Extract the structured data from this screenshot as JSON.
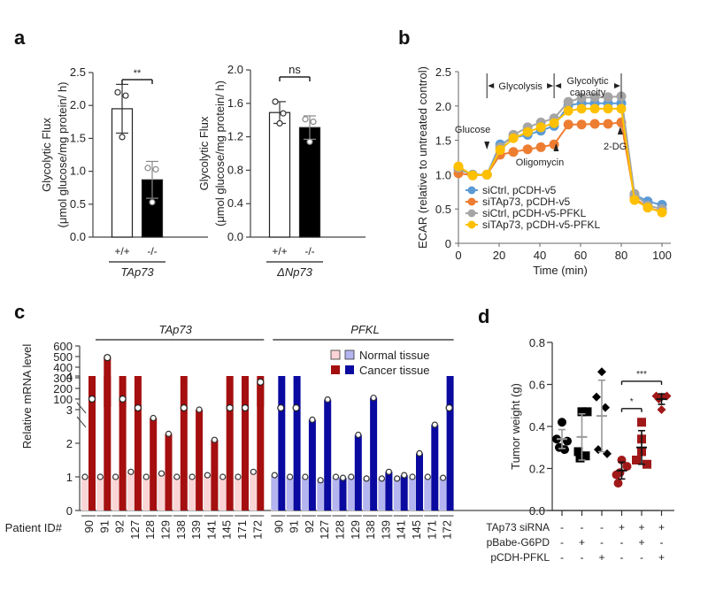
{
  "panels": {
    "a": "a",
    "b": "b",
    "c": "c",
    "d": "d"
  },
  "chart_data": [
    {
      "id": "a1",
      "type": "bar",
      "ylabel": [
        "Glycolytic Flux",
        "(μmol glucose/mg protein/ h)"
      ],
      "ylim": [
        0,
        2.5
      ],
      "yticks": [
        0.0,
        0.5,
        1.0,
        1.5,
        2.0,
        2.5
      ],
      "ytick_labels": [
        "0.0",
        "0.5",
        "1.0",
        "1.5",
        "2.0",
        "2.5"
      ],
      "categories": [
        "+/+",
        "-/-"
      ],
      "group_label": "TAp73",
      "values": [
        1.95,
        0.87
      ],
      "errors": [
        0.37,
        0.28
      ],
      "points": [
        [
          2.2,
          2.15,
          1.52
        ],
        [
          1.05,
          1.03,
          0.53
        ]
      ],
      "bar_colors": [
        "#ffffff",
        "#000000"
      ],
      "significance": "**"
    },
    {
      "id": "a2",
      "type": "bar",
      "ylabel": [
        "Glycolytic Flux",
        "(μmol glucose/mg protein/ h)"
      ],
      "ylim": [
        0,
        2.0
      ],
      "yticks": [
        0.0,
        0.4,
        0.8,
        1.2,
        1.6,
        2.0
      ],
      "ytick_labels": [
        "0.0",
        "0.4",
        "0.8",
        "1.2",
        "1.6",
        "2.0"
      ],
      "categories": [
        "+/+",
        "-/-"
      ],
      "group_label": "ΔNp73",
      "values": [
        1.49,
        1.31
      ],
      "errors": [
        0.13,
        0.14
      ],
      "points": [
        [
          1.62,
          1.48,
          1.36
        ],
        [
          1.41,
          1.38,
          1.14
        ]
      ],
      "bar_colors": [
        "#ffffff",
        "#000000"
      ],
      "significance": "ns"
    },
    {
      "id": "b",
      "type": "line",
      "xlabel": "Time (min)",
      "ylabel": "ECAR (relative to untreated control)",
      "xlim": [
        0,
        100
      ],
      "ylim": [
        0,
        2.5
      ],
      "xticks": [
        0,
        20,
        40,
        60,
        80,
        100
      ],
      "yticks": [
        0,
        0.5,
        1.0,
        1.5,
        2.0,
        2.5
      ],
      "ytick_labels": [
        "0",
        "0.5",
        "1.0",
        "1.5",
        "2.0",
        "2.5"
      ],
      "x": [
        0,
        7,
        14,
        20.5,
        27,
        34,
        40.5,
        47,
        54,
        60.5,
        67,
        73.5,
        80,
        86.5,
        93,
        100
      ],
      "series": [
        {
          "name": "siCtrl, pCDH-v5",
          "color": "#5b9bd5",
          "values": [
            1.08,
            1.0,
            1.0,
            1.44,
            1.54,
            1.58,
            1.64,
            1.71,
            2.01,
            2.04,
            2.04,
            2.04,
            2.04,
            0.71,
            0.61,
            0.56
          ]
        },
        {
          "name": "siTAp73, pCDH-v5",
          "color": "#ed7d31",
          "values": [
            1.02,
            0.99,
            1.0,
            1.29,
            1.33,
            1.37,
            1.4,
            1.44,
            1.73,
            1.73,
            1.74,
            1.74,
            1.76,
            0.66,
            0.52,
            0.46
          ]
        },
        {
          "name": "siCtrl, pCDH-v5-PFKL",
          "color": "#a5a5a5",
          "values": [
            1.1,
            0.99,
            1.0,
            1.4,
            1.58,
            1.69,
            1.76,
            1.82,
            2.06,
            2.12,
            2.13,
            2.13,
            2.14,
            0.72,
            0.55,
            0.5
          ]
        },
        {
          "name": "siTAp73, pCDH-v5-PFKL",
          "color": "#ffc000",
          "values": [
            1.12,
            0.99,
            1.0,
            1.36,
            1.53,
            1.62,
            1.69,
            1.75,
            1.93,
            1.96,
            1.96,
            1.96,
            1.96,
            0.63,
            0.52,
            0.45
          ]
        }
      ],
      "annotations": {
        "phase1": "Glycolysis",
        "phase2_line1": "Glycolytic",
        "phase2_line2": "capacity",
        "glucose": "Glucose",
        "oligomycin": "Oligomycin",
        "dg": "2-DG"
      }
    },
    {
      "id": "c",
      "type": "bar",
      "ylabel": "Relative mRNA level",
      "xlabel": "Patient ID#",
      "ylim_lower": [
        0,
        4
      ],
      "ylim_upper": [
        100,
        600
      ],
      "yticks_lower": [
        "0",
        "1",
        "2",
        "3",
        "4"
      ],
      "yticks_upper": [
        "100",
        "200",
        "300",
        "400",
        "500",
        "600"
      ],
      "categories": [
        "90",
        "91",
        "92",
        "127",
        "128",
        "129",
        "138",
        "139",
        "141",
        "145",
        "171",
        "172"
      ],
      "groups": [
        {
          "name": "TAp73",
          "normal_color": "#fbd5d5",
          "cancer_color": "#a50f0f",
          "normal": [
            1.0,
            1.0,
            1.0,
            1.15,
            1.0,
            1.1,
            1.0,
            1.0,
            1.05,
            1.0,
            1.0,
            1.15
          ],
          "cancer": [
            55,
            490,
            40,
            12,
            2.75,
            2.28,
            8,
            3.0,
            2.1,
            10,
            32,
            260
          ],
          "cancer_above_break": [
            true,
            true,
            true,
            false,
            false,
            false,
            false,
            false,
            false,
            false,
            false,
            true
          ],
          "cancer_dot_only_upper": [
            false,
            false,
            false,
            true,
            false,
            false,
            true,
            false,
            false,
            true,
            true,
            false
          ]
        },
        {
          "name": "PFKL",
          "normal_color": "#b4b4f0",
          "cancer_color": "#0a0aa0",
          "normal": [
            1.05,
            1.0,
            1.0,
            0.9,
            1.0,
            1.0,
            0.95,
            0.95,
            0.95,
            1.0,
            1.0,
            0.97
          ],
          "cancer": [
            8,
            8,
            2.7,
            3.3,
            0.97,
            2.25,
            3.35,
            1.15,
            1.05,
            1.7,
            2.55,
            8
          ],
          "cancer_above_break": [
            true,
            true,
            false,
            false,
            false,
            false,
            false,
            false,
            false,
            false,
            false,
            true
          ]
        }
      ],
      "legend": {
        "normal": "Normal tissue",
        "cancer": "Cancer tissue"
      }
    },
    {
      "id": "d",
      "type": "scatter",
      "ylabel": "Tumor weight (g)",
      "ylim": [
        0,
        0.8
      ],
      "yticks": [
        "0.0",
        "0.2",
        "0.4",
        "0.6",
        "0.8"
      ],
      "groups": [
        {
          "marker": "circle",
          "color": "#000000",
          "mean": 0.34,
          "sd": 0.045,
          "points": [
            0.42,
            0.34,
            0.33,
            0.3,
            0.29
          ]
        },
        {
          "marker": "square",
          "color": "#000000",
          "mean": 0.35,
          "sd": 0.11,
          "points": [
            0.47,
            0.47,
            0.28,
            0.26,
            0.25
          ]
        },
        {
          "marker": "diamond",
          "color": "#000000",
          "mean": 0.45,
          "sd": 0.17,
          "points": [
            0.66,
            0.54,
            0.49,
            0.29,
            0.27
          ]
        },
        {
          "marker": "circle",
          "color": "#a01818",
          "mean": 0.19,
          "sd": 0.04,
          "points": [
            0.24,
            0.21,
            0.18,
            0.17,
            0.13
          ]
        },
        {
          "marker": "square",
          "color": "#a01818",
          "mean": 0.3,
          "sd": 0.08,
          "points": [
            0.42,
            0.34,
            0.28,
            0.24,
            0.22
          ]
        },
        {
          "marker": "diamond",
          "color": "#a01818",
          "mean": 0.53,
          "sd": 0.025,
          "points": [
            0.545,
            0.545,
            0.54,
            0.53,
            0.48
          ]
        }
      ],
      "conditions": [
        {
          "label": "TAp73 siRNA",
          "values": [
            "-",
            "-",
            "-",
            "+",
            "+",
            "+"
          ]
        },
        {
          "label": "pBabe-G6PD",
          "values": [
            "-",
            "+",
            "-",
            "-",
            "+",
            "-"
          ]
        },
        {
          "label": "pCDH-PFKL",
          "values": [
            "-",
            "-",
            "+",
            "-",
            "-",
            "+"
          ]
        }
      ],
      "significance": [
        {
          "from": 3,
          "to": 5,
          "label": "***"
        },
        {
          "from": 3,
          "to": 4,
          "label": "*"
        }
      ]
    }
  ]
}
